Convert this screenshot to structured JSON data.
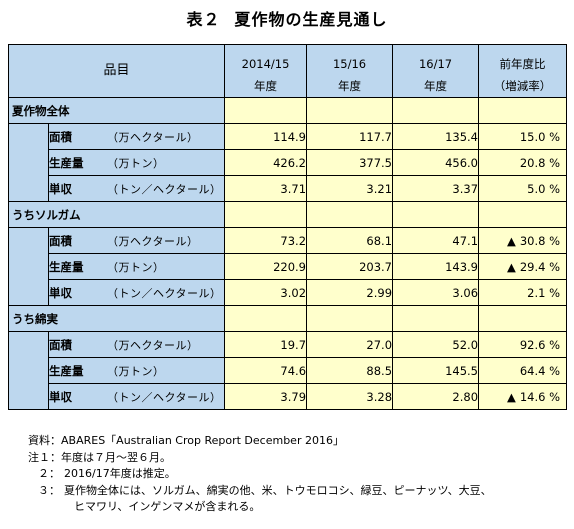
{
  "title": {
    "number": "表２",
    "text": "夏作物の生産見通し"
  },
  "header": {
    "item": "品目",
    "col1": [
      "2014/15",
      "年度"
    ],
    "col2": [
      "15/16",
      "年度"
    ],
    "col3": [
      "16/17",
      "年度"
    ],
    "col4": [
      "前年度比",
      "（増減率）"
    ]
  },
  "sections": [
    {
      "name": "夏作物全体",
      "rows": [
        {
          "label": "面積",
          "unit": "（万ヘクタール）",
          "v1": "114.9",
          "v2": "117.7",
          "v3": "135.4",
          "pct": "15.0 %",
          "tri": ""
        },
        {
          "label": "生産量",
          "unit": "（万トン）",
          "v1": "426.2",
          "v2": "377.5",
          "v3": "456.0",
          "pct": "20.8 %",
          "tri": ""
        },
        {
          "label": "単収",
          "unit": "（トン／ヘクタール）",
          "v1": "3.71",
          "v2": "3.21",
          "v3": "3.37",
          "pct": "5.0 %",
          "tri": ""
        }
      ]
    },
    {
      "name": "うちソルガム",
      "rows": [
        {
          "label": "面積",
          "unit": "（万ヘクタール）",
          "v1": "73.2",
          "v2": "68.1",
          "v3": "47.1",
          "pct": "30.8 %",
          "tri": "▲"
        },
        {
          "label": "生産量",
          "unit": "（万トン）",
          "v1": "220.9",
          "v2": "203.7",
          "v3": "143.9",
          "pct": "29.4 %",
          "tri": "▲"
        },
        {
          "label": "単収",
          "unit": "（トン／ヘクタール）",
          "v1": "3.02",
          "v2": "2.99",
          "v3": "3.06",
          "pct": "2.1 %",
          "tri": ""
        }
      ]
    },
    {
      "name": "うち綿実",
      "rows": [
        {
          "label": "面積",
          "unit": "（万ヘクタール）",
          "v1": "19.7",
          "v2": "27.0",
          "v3": "52.0",
          "pct": "92.6 %",
          "tri": ""
        },
        {
          "label": "生産量",
          "unit": "（万トン）",
          "v1": "74.6",
          "v2": "88.5",
          "v3": "145.5",
          "pct": "64.4 %",
          "tri": ""
        },
        {
          "label": "単収",
          "unit": "（トン／ヘクタール）",
          "v1": "3.79",
          "v2": "3.28",
          "v3": "2.80",
          "pct": "14.6 %",
          "tri": "▲"
        }
      ]
    }
  ],
  "notes": {
    "source_label": "資料：",
    "source": "ABARES「Australian Crop Report December 2016」",
    "note1_label": "注１：",
    "note1": "年度は７月～翌６月。",
    "note2_label": "２：",
    "note2": "2016/17年度は推定。",
    "note3_label": "３：",
    "note3": "夏作物全体には、ソルガム、綿実の他、米、トウモロコシ、緑豆、ピーナッツ、大豆、",
    "note3_cont": "ヒマワリ、インゲンマメが含まれる。"
  }
}
